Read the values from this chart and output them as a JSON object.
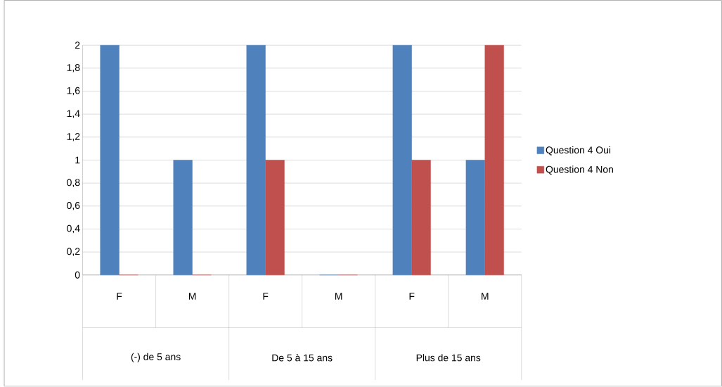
{
  "chart_data": {
    "type": "bar",
    "categories": [
      "F",
      "M",
      "F",
      "M",
      "F",
      "M"
    ],
    "series": [
      {
        "name": "Question 4 Oui",
        "color": "#4f81bd",
        "values": [
          2,
          1,
          2,
          0,
          2,
          1
        ]
      },
      {
        "name": "Question 4 Non",
        "color": "#c0504d",
        "values": [
          0,
          0,
          1,
          0,
          1,
          2
        ]
      }
    ],
    "annotations": [
      "(-) de 5 ans",
      "De 5 à 15 ans",
      "Plus de 15 ans"
    ],
    "ylim": [
      0,
      2
    ],
    "yticks": [
      0,
      {
        "value": 0.2,
        "label": "0,2"
      },
      {
        "value": 0.4,
        "label": "0,4"
      },
      {
        "value": 0.6,
        "label": "0,6"
      },
      {
        "value": 0.8,
        "label": "0,8"
      },
      1,
      {
        "value": 1.2,
        "label": "1,2"
      },
      {
        "value": 1.4,
        "label": "1,4"
      },
      {
        "value": 1.6,
        "label": "1,6"
      },
      {
        "value": 1.8,
        "label": "1,8"
      },
      2
    ],
    "grid": "y",
    "legend": "right"
  }
}
